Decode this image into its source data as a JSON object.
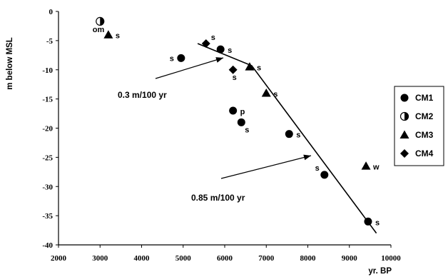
{
  "chart_data": {
    "type": "scatter",
    "xlabel": "yr. BP",
    "ylabel": "m below MSL",
    "xlim": [
      2000,
      10000
    ],
    "ylim": [
      -40,
      0
    ],
    "x_ticks": [
      2000,
      3000,
      4000,
      5000,
      6000,
      7000,
      8000,
      9000,
      10000
    ],
    "y_ticks": [
      0,
      -5,
      -10,
      -15,
      -20,
      -25,
      -30,
      -35,
      -40
    ],
    "grid": false,
    "legend_position": "right",
    "marker_color": "#000000",
    "series": [
      {
        "name": "CM1",
        "marker": "circle",
        "points": [
          {
            "x": 4950,
            "y": -8,
            "label": "s",
            "label_pos": "left"
          },
          {
            "x": 5900,
            "y": -6.5,
            "label": "s",
            "label_pos": "right"
          },
          {
            "x": 6200,
            "y": -17,
            "label": "p",
            "label_pos": "right"
          },
          {
            "x": 6400,
            "y": -19,
            "label": "s",
            "label_pos": "lower-right"
          },
          {
            "x": 7550,
            "y": -21,
            "label": "s",
            "label_pos": "right"
          },
          {
            "x": 8400,
            "y": -28,
            "label": "s",
            "label_pos": "upper-left"
          },
          {
            "x": 9450,
            "y": -36,
            "label": "s",
            "label_pos": "right"
          }
        ]
      },
      {
        "name": "CM2",
        "marker": "half-circle",
        "points": [
          {
            "x": 3000,
            "y": -1.7,
            "label": "om",
            "label_pos": "lower-left"
          }
        ]
      },
      {
        "name": "CM3",
        "marker": "triangle",
        "points": [
          {
            "x": 3200,
            "y": -4,
            "label": "s",
            "label_pos": "right"
          },
          {
            "x": 6600,
            "y": -9.5,
            "label": "s",
            "label_pos": "right"
          },
          {
            "x": 7000,
            "y": -14,
            "label": "s",
            "label_pos": "right"
          },
          {
            "x": 9400,
            "y": -26.5,
            "label": "w",
            "label_pos": "right"
          }
        ]
      },
      {
        "name": "CM4",
        "marker": "diamond",
        "points": [
          {
            "x": 5550,
            "y": -5.5,
            "label": "s",
            "label_pos": "upper-right"
          },
          {
            "x": 6200,
            "y": -10,
            "label": "s",
            "label_pos": "below"
          }
        ]
      }
    ],
    "trend_line": {
      "x": [
        5350,
        6650,
        9650
      ],
      "y": [
        -5.5,
        -9.3,
        -38
      ]
    },
    "annotations": [
      {
        "text": "0.3 m/100 yr"
      },
      {
        "text": "0.85 m/100 yr"
      }
    ]
  }
}
